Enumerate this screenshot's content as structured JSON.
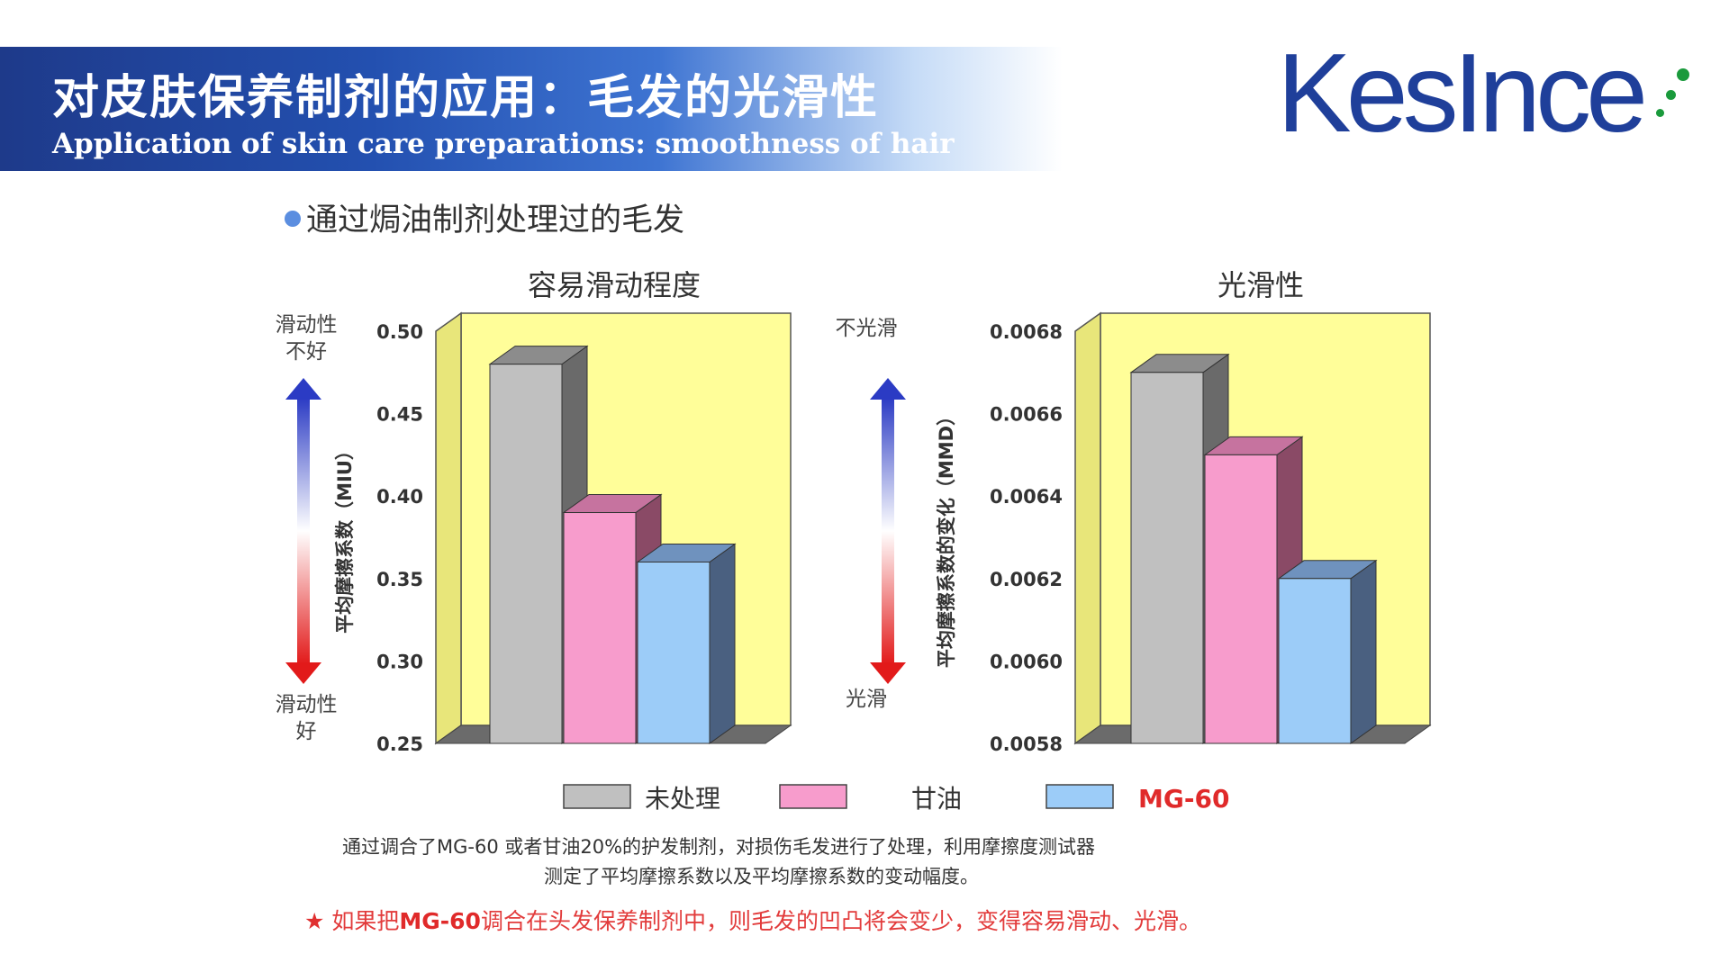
{
  "header": {
    "title_cn": "对皮肤保养制剂的应用：毛发的光滑性",
    "title_en": "Application of skin care preparations: smoothness of hair"
  },
  "logo": {
    "text": "KesInce",
    "text_color": "#1f3f9a",
    "dot_color": "#1a9a3c"
  },
  "subtitle": "通过焗油制剂处理过的毛发",
  "chart_data": [
    {
      "type": "bar",
      "title": "容易滑动程度",
      "ylabel": "平均摩擦系数（MIU）",
      "categories": [
        "未处理",
        "甘油",
        "MG-60"
      ],
      "values": [
        0.48,
        0.39,
        0.36
      ],
      "ylim": [
        0.25,
        0.5
      ],
      "yticks": [
        "0.50",
        "0.45",
        "0.40",
        "0.35",
        "0.30",
        "0.25"
      ],
      "arrow_top_label": [
        "滑动性",
        "不好"
      ],
      "arrow_bottom_label": [
        "滑动性",
        "好"
      ]
    },
    {
      "type": "bar",
      "title": "光滑性",
      "ylabel": "平均摩擦系数的变化（MMD）",
      "categories": [
        "未处理",
        "甘油",
        "MG-60"
      ],
      "values": [
        0.0067,
        0.0065,
        0.0062
      ],
      "ylim": [
        0.0058,
        0.0068
      ],
      "yticks": [
        "0.0068",
        "0.0066",
        "0.0064",
        "0.0062",
        "0.0060",
        "0.0058"
      ],
      "arrow_top_label": [
        "不光滑"
      ],
      "arrow_bottom_label": [
        "光滑"
      ]
    }
  ],
  "legend": [
    {
      "label": "未处理",
      "color": "#c0c0c0"
    },
    {
      "label": "甘油",
      "color": "#f79ccc"
    },
    {
      "label": "MG-60",
      "color": "#9cccf8",
      "label_color": "#e02a2a"
    }
  ],
  "colors": {
    "plot_back": "#fffe99",
    "plot_side": "#e8e67a",
    "floor": "#6b6b6b",
    "bar_sides": [
      "#6a6a6a",
      "#8a4a66",
      "#4a6080"
    ],
    "bar_tops": [
      "#8c8c8c",
      "#c6739f",
      "#6f92be"
    ]
  },
  "caption": {
    "line1": "通过调合了MG-60 或者甘油20%的护发制剂，对损伤毛发进行了处理，利用摩擦度测试器",
    "line2": "测定了平均摩擦系数以及平均摩擦系数的变动幅度。"
  },
  "note": {
    "star": "★",
    "prefix": " 如果把",
    "bold": "MG-60",
    "suffix": "调合在头发保养制剂中，则毛发的凹凸将会变少，变得容易滑动、光滑。"
  }
}
